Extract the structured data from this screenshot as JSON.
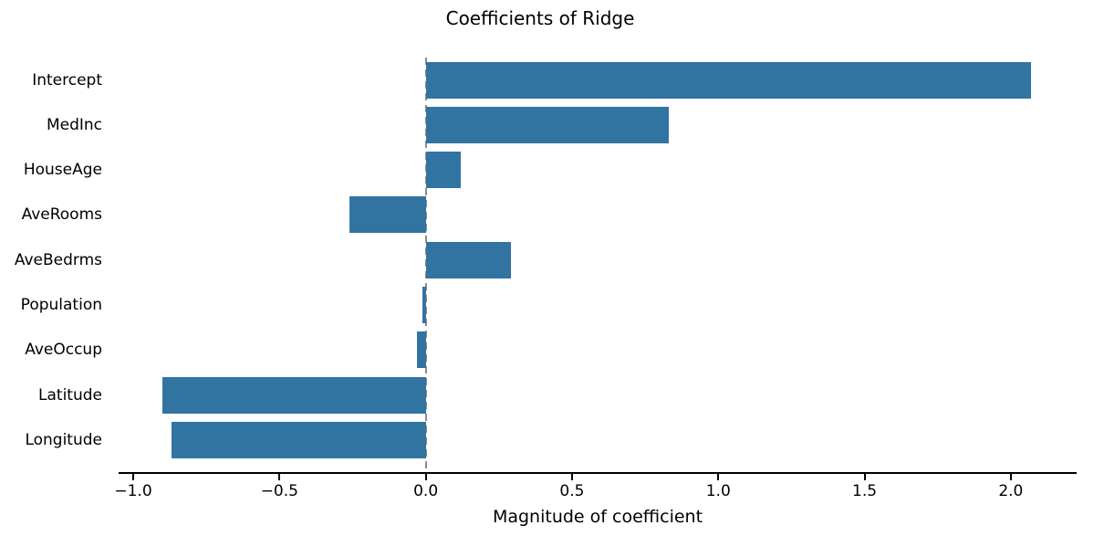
{
  "chart_data": {
    "type": "bar",
    "orientation": "horizontal",
    "title": "Coefficients of Ridge",
    "xlabel": "Magnitude of coefficient",
    "ylabel": "",
    "categories": [
      "Intercept",
      "MedInc",
      "HouseAge",
      "AveRooms",
      "AveBedrms",
      "Population",
      "AveOccup",
      "Latitude",
      "Longitude"
    ],
    "values": [
      2.07,
      0.83,
      0.12,
      -0.26,
      0.29,
      -0.01,
      -0.03,
      -0.9,
      -0.87
    ],
    "xlim": [
      -1.05,
      2.225
    ],
    "x_ticks": [
      -1.0,
      -0.5,
      0.0,
      0.5,
      1.0,
      1.5,
      2.0
    ],
    "x_tick_labels": [
      "−1.0",
      "−0.5",
      "0.0",
      "0.5",
      "1.0",
      "1.5",
      "2.0"
    ],
    "grid": false,
    "legend": false,
    "zero_reference_line": {
      "x": 0.0,
      "style": "dashed",
      "color": "#8c8c8c"
    },
    "bar_color": "#3274a1",
    "axis_color": "#000000"
  }
}
